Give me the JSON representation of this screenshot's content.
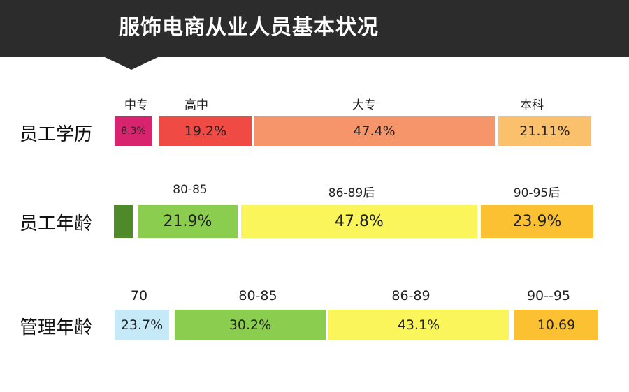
{
  "header": {
    "title": "服饰电商从业人员基本状况"
  },
  "chart_data": {
    "type": "bar",
    "rows": [
      {
        "label": "员工学历",
        "segments": [
          {
            "category": "中专",
            "value_label": "8.3%",
            "value": 8.3,
            "color": "#d8246e"
          },
          {
            "category": "高中",
            "value_label": "19.2%",
            "value": 19.2,
            "color": "#f04a45"
          },
          {
            "category": "大专",
            "value_label": "47.4%",
            "value": 47.4,
            "color": "#f7956a"
          },
          {
            "category": "本科",
            "value_label": "21.11%",
            "value": 21.11,
            "color": "#fac06c"
          }
        ]
      },
      {
        "label": "员工年龄",
        "segments": [
          {
            "category": "",
            "value_label": "",
            "value": null,
            "color": "#4e8a2a"
          },
          {
            "category": "80-85",
            "value_label": "21.9%",
            "value": 21.9,
            "color": "#8acd4f"
          },
          {
            "category": "86-89后",
            "value_label": "47.8%",
            "value": 47.8,
            "color": "#f9f55a"
          },
          {
            "category": "90-95后",
            "value_label": "23.9%",
            "value": 23.9,
            "color": "#fcc132"
          }
        ]
      },
      {
        "label": "管理年龄",
        "segments": [
          {
            "category": "70",
            "value_label": "23.7%",
            "value": 23.7,
            "color": "#c6e9f8"
          },
          {
            "category": "80-85",
            "value_label": "30.2%",
            "value": 30.2,
            "color": "#8acd4f"
          },
          {
            "category": "86-89",
            "value_label": "43.1%",
            "value": 43.1,
            "color": "#f9f55a"
          },
          {
            "category": "90--95",
            "value_label": "10.69",
            "value": 10.69,
            "color": "#fcc132"
          }
        ]
      }
    ]
  }
}
